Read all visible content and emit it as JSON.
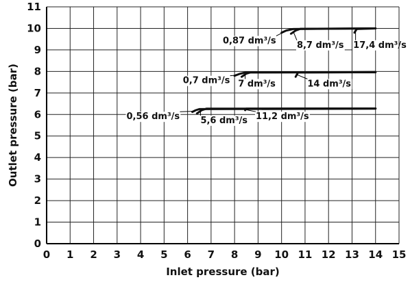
{
  "chart_data": {
    "type": "line",
    "xlabel": "Inlet pressure (bar)",
    "ylabel": "Outlet pressure (bar)",
    "xlim": [
      0,
      15
    ],
    "ylim": [
      0,
      11
    ],
    "xticks": [
      "0",
      "1",
      "2",
      "3",
      "4",
      "5",
      "6",
      "7",
      "8",
      "9",
      "10",
      "11",
      "12",
      "13",
      "14",
      "15"
    ],
    "yticks": [
      "0",
      "1",
      "2",
      "3",
      "4",
      "5",
      "6",
      "7",
      "8",
      "9",
      "10",
      "11"
    ],
    "grid": true,
    "colors": {
      "line": "#111111",
      "grid": "#222222",
      "background": "#ffffff"
    },
    "series": [
      {
        "curves": [
          {
            "flow": "0,56 dm³/s",
            "points": [
              [
                6.2,
                6.12
              ],
              [
                6.35,
                6.2
              ],
              [
                6.5,
                6.25
              ],
              [
                14.0,
                6.27
              ]
            ]
          },
          {
            "flow": "5,6 dm³/s",
            "points": [
              [
                6.4,
                6.05
              ],
              [
                6.6,
                6.2
              ],
              [
                6.8,
                6.27
              ],
              [
                14.0,
                6.28
              ]
            ]
          },
          {
            "flow": "11,2 dm³/s",
            "points": [
              [
                8.45,
                6.2
              ],
              [
                8.5,
                6.27
              ],
              [
                14.0,
                6.28
              ]
            ]
          }
        ]
      },
      {
        "curves": [
          {
            "flow": "0,7 dm³/s",
            "points": [
              [
                8.0,
                7.8
              ],
              [
                8.2,
                7.88
              ],
              [
                8.45,
                7.95
              ],
              [
                14.0,
                7.96
              ]
            ]
          },
          {
            "flow": "7 dm³/s",
            "points": [
              [
                8.3,
                7.75
              ],
              [
                8.5,
                7.9
              ],
              [
                8.7,
                7.96
              ],
              [
                14.0,
                7.97
              ]
            ]
          },
          {
            "flow": "14 dm³/s",
            "points": [
              [
                10.6,
                7.75
              ],
              [
                10.7,
                7.95
              ],
              [
                14.0,
                7.97
              ]
            ]
          }
        ]
      },
      {
        "curves": [
          {
            "flow": "0,87 dm³/s",
            "points": [
              [
                10.0,
                9.8
              ],
              [
                10.2,
                9.9
              ],
              [
                10.5,
                9.97
              ],
              [
                14.0,
                10.0
              ]
            ]
          },
          {
            "flow": "8,7 dm³/s",
            "points": [
              [
                10.4,
                9.75
              ],
              [
                10.6,
                9.9
              ],
              [
                10.8,
                9.98
              ],
              [
                14.0,
                10.0
              ]
            ]
          },
          {
            "flow": "17,4 dm³/s",
            "points": [
              [
                13.1,
                9.8
              ],
              [
                13.2,
                9.97
              ],
              [
                14.0,
                10.0
              ]
            ]
          }
        ]
      }
    ],
    "annotations": [
      {
        "text": "0,56 dm³/s",
        "x": 3.4,
        "y": 5.78,
        "target": [
          6.3,
          6.15
        ]
      },
      {
        "text": "5,6 dm³/s",
        "x": 6.55,
        "y": 5.6,
        "target": [
          6.55,
          6.18
        ]
      },
      {
        "text": "11,2 dm³/s",
        "x": 8.9,
        "y": 5.78,
        "target": [
          8.5,
          6.22
        ]
      },
      {
        "text": "0,7 dm³/s",
        "x": 5.8,
        "y": 7.45,
        "target": [
          8.05,
          7.82
        ]
      },
      {
        "text": "7 dm³/s",
        "x": 8.15,
        "y": 7.3,
        "target": [
          8.45,
          7.85
        ]
      },
      {
        "text": "14 dm³/s",
        "x": 11.1,
        "y": 7.3,
        "target": [
          10.65,
          7.85
        ]
      },
      {
        "text": "0,87 dm³/s",
        "x": 7.5,
        "y": 9.3,
        "target": [
          10.1,
          9.83
        ]
      },
      {
        "text": "8,7 dm³/s",
        "x": 10.65,
        "y": 9.1,
        "target": [
          10.5,
          9.85
        ]
      },
      {
        "text": "17,4 dm³/s",
        "x": 13.05,
        "y": 9.1,
        "target": [
          13.15,
          9.85
        ]
      }
    ]
  }
}
